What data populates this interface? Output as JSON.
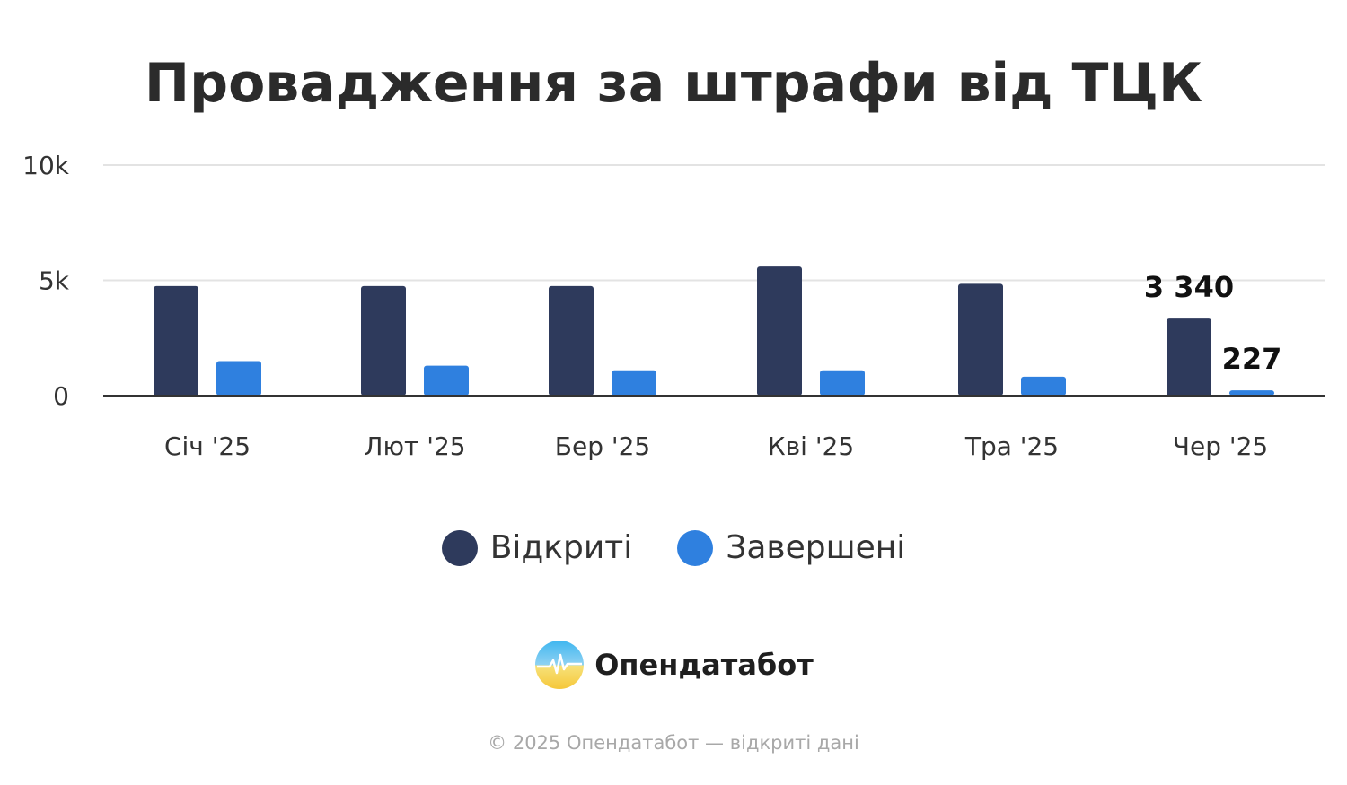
{
  "colors": {
    "opened": "#2e3a5c",
    "completed": "#2f80df",
    "grid": "#e3e3e3",
    "baseline": "#333333"
  },
  "chart_data": {
    "type": "bar",
    "title": "Провадження за штрафи від ТЦК",
    "categories": [
      "Січ '25",
      "Лют '25",
      "Бер '25",
      "Кві '25",
      "Тра '25",
      "Чер '25"
    ],
    "series": [
      {
        "name": "Відкриті",
        "values": [
          4750,
          4750,
          4750,
          5600,
          4850,
          3340
        ]
      },
      {
        "name": "Завершені",
        "values": [
          1500,
          1300,
          1100,
          1100,
          820,
          227
        ]
      }
    ],
    "ylim": [
      0,
      10000
    ],
    "yticks": [
      {
        "value": 0,
        "label": "0"
      },
      {
        "value": 5000,
        "label": "5k"
      },
      {
        "value": 10000,
        "label": "10k"
      }
    ],
    "data_labels": [
      {
        "series": 0,
        "index": 5,
        "text": "3 340"
      },
      {
        "series": 1,
        "index": 5,
        "text": "227"
      }
    ],
    "grid": true,
    "legend_position": "bottom"
  },
  "brand": {
    "name": "Опендатабот",
    "logo_icon": "opendatabot-logo-icon"
  },
  "footer": "© 2025 Опендатабот — відкриті дані"
}
